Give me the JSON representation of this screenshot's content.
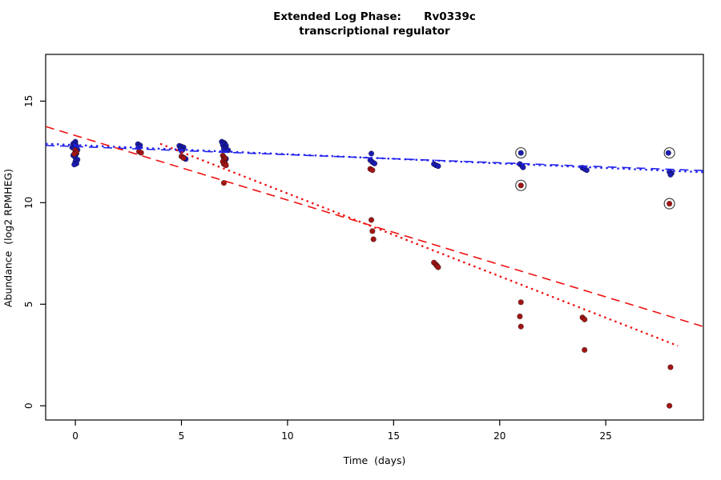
{
  "title": {
    "line1": "Extended Log Phase:      Rv0339c",
    "line2": "transcriptional regulator"
  },
  "chart_data": {
    "type": "scatter",
    "xlabel": "Time  (days)",
    "ylabel": "Abundance  (log2 RPMHEG)",
    "xlim": [
      -1.4,
      29.6
    ],
    "ylim": [
      -0.7,
      17.3
    ],
    "xticks": [
      0,
      5,
      10,
      15,
      20,
      25
    ],
    "yticks": [
      0,
      5,
      10,
      15
    ],
    "grid": false,
    "colors": {
      "blue_point": "#1c1cb4",
      "red_point": "#a31515",
      "blue_line": "#2222ee",
      "red_line": "#ee1111",
      "outlier_ring": "#333333",
      "axis": "#000000"
    },
    "series": [
      {
        "name": "blue",
        "color": "#1c1cb4",
        "points": [
          [
            -0.15,
            12.72
          ],
          [
            -0.1,
            12.9
          ],
          [
            0,
            13.0
          ],
          [
            0,
            12.87
          ],
          [
            0.05,
            12.78
          ],
          [
            -0.05,
            12.68
          ],
          [
            0.1,
            12.6
          ],
          [
            0,
            12.52
          ],
          [
            0.05,
            12.42
          ],
          [
            -0.1,
            12.33
          ],
          [
            0,
            12.22
          ],
          [
            0.1,
            12.12
          ],
          [
            0,
            12.02
          ],
          [
            0.05,
            11.93
          ],
          [
            -0.05,
            11.88
          ],
          [
            2.95,
            12.88
          ],
          [
            3.05,
            12.82
          ],
          [
            3.0,
            12.75
          ],
          [
            4.9,
            12.8
          ],
          [
            5.0,
            12.76
          ],
          [
            5.1,
            12.72
          ],
          [
            4.95,
            12.66
          ],
          [
            5.05,
            12.6
          ],
          [
            5.0,
            12.55
          ],
          [
            5.1,
            12.22
          ],
          [
            5.2,
            12.15
          ],
          [
            6.9,
            13.0
          ],
          [
            7.0,
            12.95
          ],
          [
            7.05,
            12.9
          ],
          [
            6.95,
            12.85
          ],
          [
            7.1,
            12.8
          ],
          [
            7.0,
            12.74
          ],
          [
            7.05,
            12.68
          ],
          [
            7.0,
            12.62
          ],
          [
            7.2,
            12.58
          ],
          [
            7.0,
            12.22
          ],
          [
            7.1,
            12.16
          ],
          [
            13.95,
            12.42
          ],
          [
            13.9,
            12.1
          ],
          [
            14.0,
            12.0
          ],
          [
            14.1,
            11.93
          ],
          [
            16.9,
            11.9
          ],
          [
            17.0,
            11.84
          ],
          [
            17.1,
            11.8
          ],
          [
            21.0,
            12.45
          ],
          [
            20.95,
            11.9
          ],
          [
            21.05,
            11.82
          ],
          [
            21.1,
            11.74
          ],
          [
            23.9,
            11.72
          ],
          [
            24.0,
            11.66
          ],
          [
            24.1,
            11.6
          ],
          [
            27.95,
            12.45
          ],
          [
            28.0,
            11.52
          ],
          [
            28.1,
            11.45
          ],
          [
            28.05,
            11.38
          ]
        ]
      },
      {
        "name": "red",
        "color": "#a31515",
        "points": [
          [
            0,
            12.58
          ],
          [
            0.05,
            12.48
          ],
          [
            -0.05,
            12.4
          ],
          [
            3.0,
            12.52
          ],
          [
            3.1,
            12.46
          ],
          [
            5.0,
            12.28
          ],
          [
            5.1,
            12.2
          ],
          [
            6.95,
            12.32
          ],
          [
            7.0,
            12.25
          ],
          [
            7.05,
            12.18
          ],
          [
            7.0,
            12.1
          ],
          [
            6.95,
            12.02
          ],
          [
            7.05,
            11.96
          ],
          [
            7.0,
            11.9
          ],
          [
            7.1,
            11.84
          ],
          [
            7.0,
            10.97
          ],
          [
            13.9,
            11.66
          ],
          [
            14.0,
            11.6
          ],
          [
            13.95,
            9.15
          ],
          [
            14.0,
            8.6
          ],
          [
            14.05,
            8.2
          ],
          [
            16.9,
            7.05
          ],
          [
            17.0,
            6.95
          ],
          [
            17.05,
            6.88
          ],
          [
            17.1,
            6.82
          ],
          [
            21.0,
            10.85
          ],
          [
            21.0,
            5.1
          ],
          [
            20.95,
            4.4
          ],
          [
            21.0,
            3.9
          ],
          [
            23.9,
            4.35
          ],
          [
            24.0,
            4.25
          ],
          [
            24.0,
            2.75
          ],
          [
            28.0,
            9.95
          ],
          [
            28.05,
            1.9
          ],
          [
            28.0,
            0.0
          ]
        ]
      }
    ],
    "trend_lines": [
      {
        "name": "blue-dashed",
        "color": "#2222ee",
        "style": "dashed",
        "x1": -1.4,
        "y1": 12.82,
        "x2": 29.6,
        "y2": 11.58
      },
      {
        "name": "blue-dotted",
        "color": "#2222ee",
        "style": "dotted",
        "x1": -1.4,
        "y1": 12.9,
        "x2": 29.6,
        "y2": 11.5
      },
      {
        "name": "red-dashed",
        "color": "#ee1111",
        "style": "dashed",
        "x1": -1.4,
        "y1": 13.75,
        "x2": 29.6,
        "y2": 3.9
      },
      {
        "name": "red-dotted",
        "color": "#ee1111",
        "style": "dotted",
        "x1": 4.0,
        "y1": 12.9,
        "x2": 28.4,
        "y2": 2.95
      }
    ],
    "outlier_circles": [
      [
        21.0,
        12.45
      ],
      [
        21.0,
        10.85
      ],
      [
        28.0,
        12.45
      ],
      [
        28.0,
        9.95
      ]
    ]
  }
}
